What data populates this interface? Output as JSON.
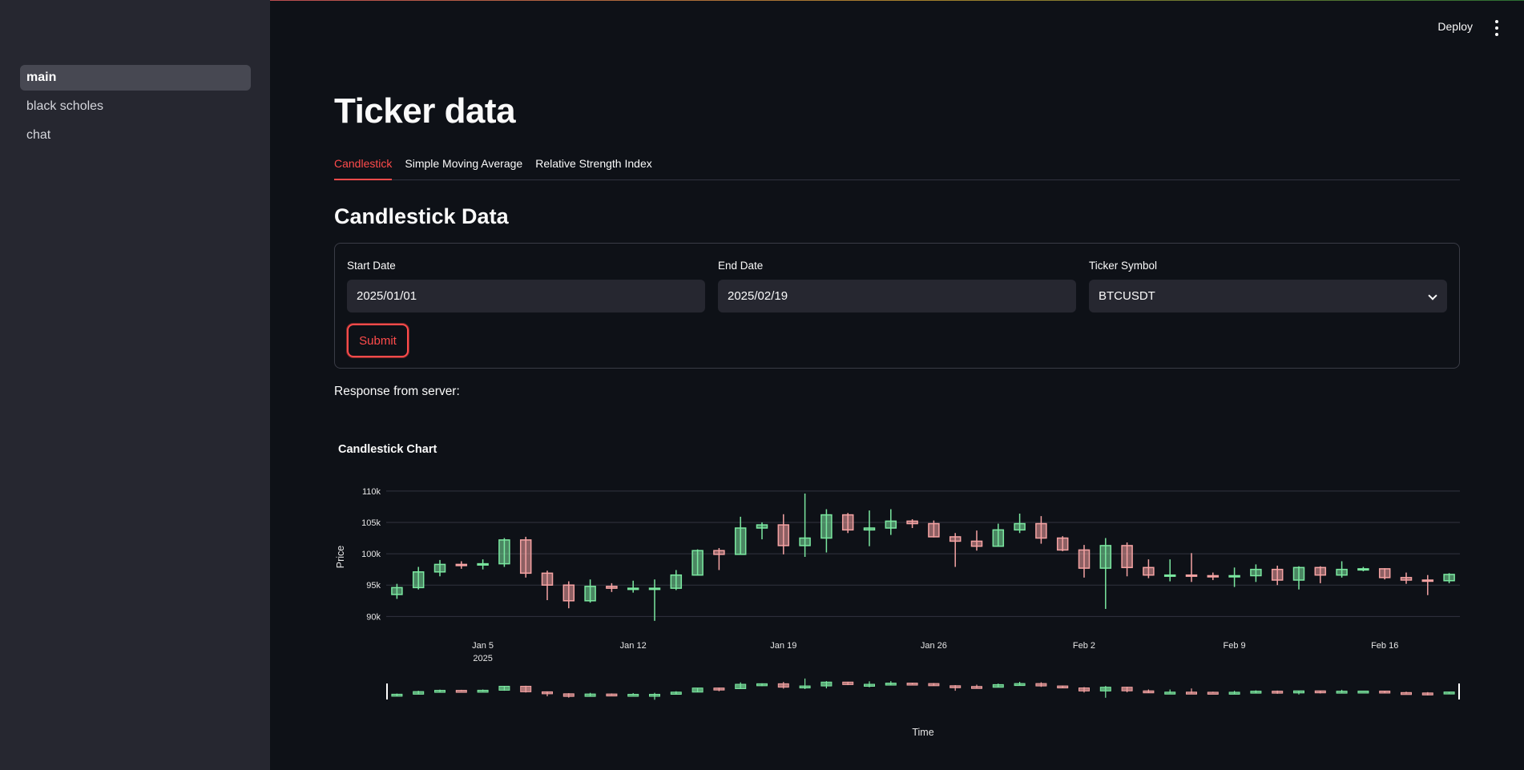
{
  "app": {
    "deploy_label": "Deploy",
    "menu_icon": "kebab-menu-icon"
  },
  "sidebar": {
    "items": [
      {
        "label": "main",
        "active": true
      },
      {
        "label": "black scholes",
        "active": false
      },
      {
        "label": "chat",
        "active": false
      }
    ]
  },
  "main": {
    "title": "Ticker data",
    "tabs": [
      {
        "label": "Candlestick",
        "active": true
      },
      {
        "label": "Simple Moving Average",
        "active": false
      },
      {
        "label": "Relative Strength Index",
        "active": false
      }
    ],
    "subtitle": "Candlestick Data",
    "form": {
      "start_date_label": "Start Date",
      "start_date_value": "2025/01/01",
      "end_date_label": "End Date",
      "end_date_value": "2025/02/19",
      "ticker_label": "Ticker Symbol",
      "ticker_value": "BTCUSDT",
      "submit_label": "Submit"
    },
    "response_label": "Response from server:"
  },
  "colors": {
    "accent": "#ff4b4b",
    "up": "#7be8a0",
    "down": "#f5a3a3"
  },
  "chart_data": {
    "type": "candlestick",
    "title": "Candlestick Chart",
    "ylabel": "Price",
    "xlabel": "Time",
    "ylim": [
      88000,
      111000
    ],
    "yticks": [
      90000,
      95000,
      100000,
      105000,
      110000
    ],
    "ytick_labels": [
      "90k",
      "95k",
      "100k",
      "105k",
      "110k"
    ],
    "xticks": [
      {
        "day": 5,
        "label": "Jan 5",
        "sublabel": "2025"
      },
      {
        "day": 12,
        "label": "Jan 12",
        "sublabel": ""
      },
      {
        "day": 19,
        "label": "Jan 19",
        "sublabel": ""
      },
      {
        "day": 26,
        "label": "Jan 26",
        "sublabel": ""
      },
      {
        "day": 33,
        "label": "Feb 2",
        "sublabel": ""
      },
      {
        "day": 40,
        "label": "Feb 9",
        "sublabel": ""
      },
      {
        "day": 47,
        "label": "Feb 16",
        "sublabel": ""
      }
    ],
    "grid": true,
    "rangeslider": true,
    "candles": [
      {
        "day": 1,
        "o": 93500,
        "h": 95200,
        "l": 92800,
        "c": 94600
      },
      {
        "day": 2,
        "o": 94600,
        "h": 97900,
        "l": 94300,
        "c": 97100
      },
      {
        "day": 3,
        "o": 97100,
        "h": 99000,
        "l": 96400,
        "c": 98300
      },
      {
        "day": 4,
        "o": 98300,
        "h": 98800,
        "l": 97600,
        "c": 98200
      },
      {
        "day": 5,
        "o": 98200,
        "h": 99100,
        "l": 97500,
        "c": 98400
      },
      {
        "day": 6,
        "o": 98400,
        "h": 102500,
        "l": 97900,
        "c": 102200
      },
      {
        "day": 7,
        "o": 102200,
        "h": 102700,
        "l": 96200,
        "c": 96900
      },
      {
        "day": 8,
        "o": 96900,
        "h": 97300,
        "l": 92600,
        "c": 95000
      },
      {
        "day": 9,
        "o": 95000,
        "h": 95600,
        "l": 91300,
        "c": 92500
      },
      {
        "day": 10,
        "o": 92500,
        "h": 95900,
        "l": 92200,
        "c": 94800
      },
      {
        "day": 11,
        "o": 94800,
        "h": 95300,
        "l": 93900,
        "c": 94500
      },
      {
        "day": 12,
        "o": 94500,
        "h": 95700,
        "l": 93800,
        "c": 94500
      },
      {
        "day": 13,
        "o": 94500,
        "h": 95900,
        "l": 89300,
        "c": 94500
      },
      {
        "day": 14,
        "o": 94500,
        "h": 97400,
        "l": 94200,
        "c": 96600
      },
      {
        "day": 15,
        "o": 96600,
        "h": 100700,
        "l": 96500,
        "c": 100500
      },
      {
        "day": 16,
        "o": 100500,
        "h": 100900,
        "l": 97400,
        "c": 99900
      },
      {
        "day": 17,
        "o": 99900,
        "h": 105900,
        "l": 99900,
        "c": 104100
      },
      {
        "day": 18,
        "o": 104100,
        "h": 105000,
        "l": 102300,
        "c": 104600
      },
      {
        "day": 19,
        "o": 104600,
        "h": 106300,
        "l": 99900,
        "c": 101300
      },
      {
        "day": 20,
        "o": 101300,
        "h": 109600,
        "l": 99500,
        "c": 102500
      },
      {
        "day": 21,
        "o": 102500,
        "h": 107100,
        "l": 100200,
        "c": 106200
      },
      {
        "day": 22,
        "o": 106200,
        "h": 106500,
        "l": 103300,
        "c": 103800
      },
      {
        "day": 23,
        "o": 103800,
        "h": 106900,
        "l": 101200,
        "c": 104100
      },
      {
        "day": 24,
        "o": 104100,
        "h": 107100,
        "l": 103000,
        "c": 105200
      },
      {
        "day": 25,
        "o": 105200,
        "h": 105500,
        "l": 104100,
        "c": 104800
      },
      {
        "day": 26,
        "o": 104800,
        "h": 105300,
        "l": 102600,
        "c": 102700
      },
      {
        "day": 27,
        "o": 102700,
        "h": 103300,
        "l": 97900,
        "c": 102000
      },
      {
        "day": 28,
        "o": 102000,
        "h": 103700,
        "l": 100500,
        "c": 101200
      },
      {
        "day": 29,
        "o": 101200,
        "h": 104800,
        "l": 101100,
        "c": 103800
      },
      {
        "day": 30,
        "o": 103800,
        "h": 106400,
        "l": 103300,
        "c": 104800
      },
      {
        "day": 31,
        "o": 104800,
        "h": 106000,
        "l": 101600,
        "c": 102500
      },
      {
        "day": 32,
        "o": 102500,
        "h": 102800,
        "l": 100400,
        "c": 100600
      },
      {
        "day": 33,
        "o": 100600,
        "h": 101400,
        "l": 96200,
        "c": 97700
      },
      {
        "day": 34,
        "o": 97700,
        "h": 102500,
        "l": 91200,
        "c": 101300
      },
      {
        "day": 35,
        "o": 101300,
        "h": 101800,
        "l": 96400,
        "c": 97800
      },
      {
        "day": 36,
        "o": 97800,
        "h": 99100,
        "l": 96100,
        "c": 96600
      },
      {
        "day": 37,
        "o": 96600,
        "h": 99100,
        "l": 95600,
        "c": 96600
      },
      {
        "day": 38,
        "o": 96600,
        "h": 100100,
        "l": 95500,
        "c": 96500
      },
      {
        "day": 39,
        "o": 96500,
        "h": 97000,
        "l": 95800,
        "c": 96400
      },
      {
        "day": 40,
        "o": 96400,
        "h": 97800,
        "l": 94700,
        "c": 96500
      },
      {
        "day": 41,
        "o": 96500,
        "h": 98300,
        "l": 95500,
        "c": 97500
      },
      {
        "day": 42,
        "o": 97500,
        "h": 98100,
        "l": 95000,
        "c": 95800
      },
      {
        "day": 43,
        "o": 95800,
        "h": 98000,
        "l": 94300,
        "c": 97800
      },
      {
        "day": 44,
        "o": 97800,
        "h": 98000,
        "l": 95300,
        "c": 96600
      },
      {
        "day": 45,
        "o": 96600,
        "h": 98800,
        "l": 96200,
        "c": 97500
      },
      {
        "day": 46,
        "o": 97500,
        "h": 97900,
        "l": 97200,
        "c": 97600
      },
      {
        "day": 47,
        "o": 97600,
        "h": 97700,
        "l": 95900,
        "c": 96200
      },
      {
        "day": 48,
        "o": 96200,
        "h": 97000,
        "l": 95200,
        "c": 95800
      },
      {
        "day": 49,
        "o": 95800,
        "h": 96600,
        "l": 93400,
        "c": 95700
      },
      {
        "day": 50,
        "o": 95700,
        "h": 96900,
        "l": 95300,
        "c": 96700
      }
    ]
  }
}
